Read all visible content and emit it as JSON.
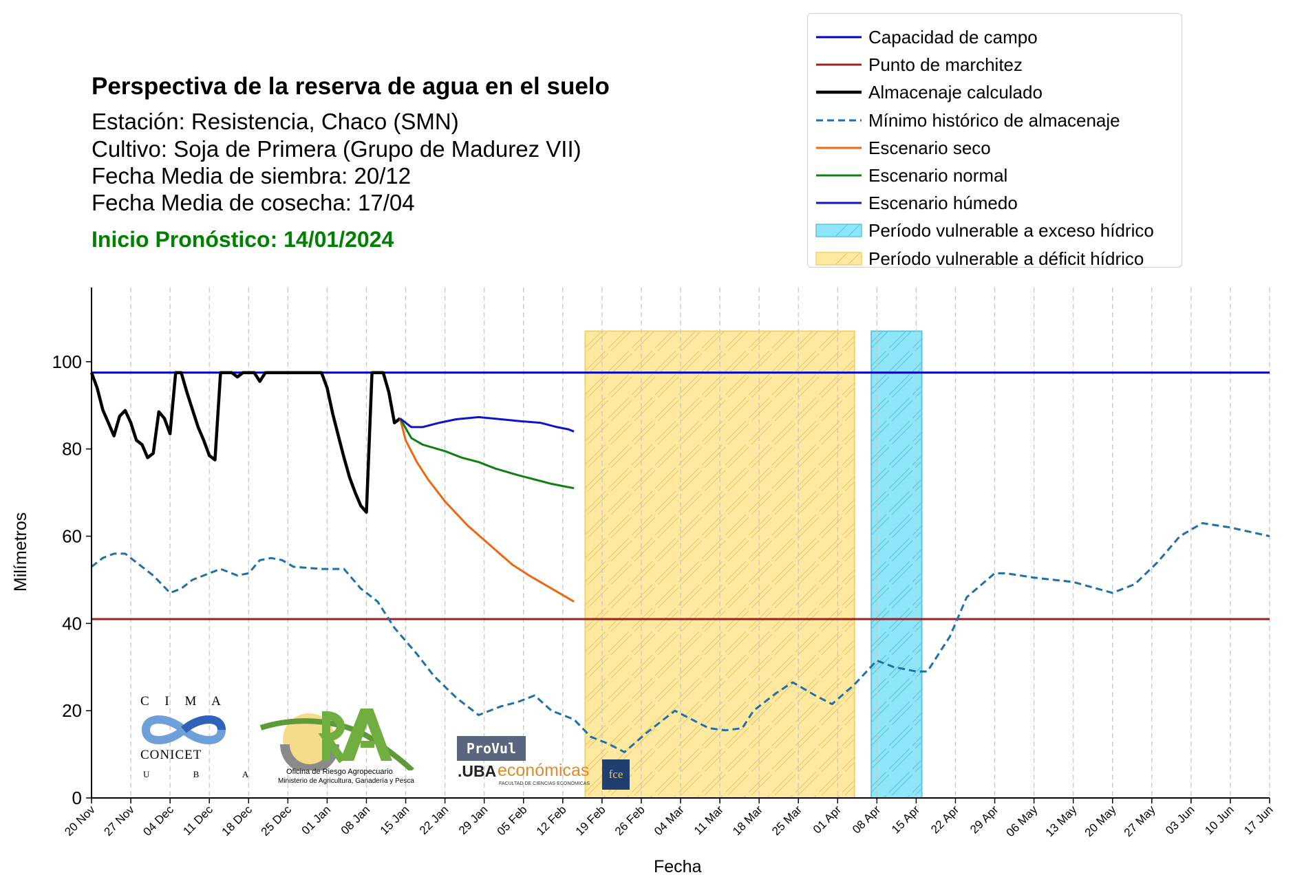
{
  "header": {
    "title": "Perspectiva de la reserva de agua en el suelo",
    "station": "Estación: Resistencia, Chaco (SMN)",
    "crop": "Cultivo: Soja de Primera (Grupo de Madurez VII)",
    "sowing": "Fecha Media de siembra: 20/12",
    "harvest": "Fecha Media de cosecha: 17/04",
    "forecast_start": "Inicio Pronóstico: 14/01/2024"
  },
  "logos": {
    "cima_letters": "C I M A",
    "conicet": "CONICET",
    "uba_letters": "U B A",
    "ora_caption1": "Oficina de Riesgo Agropecuario",
    "ora_caption2": "Ministerio de Agricultura, Ganadería y Pesca",
    "provul": "ProVul",
    "uba_prefix": ".UBA",
    "economicas": "económicas",
    "fce_caption": "FACULTAD DE CIENCIAS ECONÓMICAS",
    "fce": "fce"
  },
  "colors": {
    "capacidad": "#0000cc",
    "marchitez": "#992222",
    "almacenaje": "#000000",
    "minimo": "#1f6fa8",
    "seco": "#ee6611",
    "normal": "#108010",
    "humedo": "#1111cc",
    "exceso": "#8ee6f8",
    "deficit": "#ffe9a0"
  },
  "chart_data": {
    "type": "line",
    "xlabel": "Fecha",
    "ylabel": "Milímetros",
    "x_ticks": [
      "20 Nov",
      "27 Nov",
      "04 Dec",
      "11 Dec",
      "18 Dec",
      "25 Dec",
      "01 Jan",
      "08 Jan",
      "15 Jan",
      "22 Jan",
      "29 Jan",
      "05 Feb",
      "12 Feb",
      "19 Feb",
      "26 Feb",
      "04 Mar",
      "11 Mar",
      "18 Mar",
      "25 Mar",
      "01 Apr",
      "08 Apr",
      "15 Apr",
      "22 Apr",
      "29 Apr",
      "06 May",
      "13 May",
      "20 May",
      "27 May",
      "03 Jun",
      "10 Jun",
      "17 Jun"
    ],
    "x_range": [
      "2023-11-20",
      "2024-06-17"
    ],
    "y_ticks": [
      0,
      20,
      40,
      60,
      80,
      100
    ],
    "ylim": [
      0,
      117
    ],
    "grid": "vertical dashed at each weekly tick",
    "legend_placement": "upper right, above plot",
    "legend": [
      {
        "label": "Capacidad de campo",
        "kind": "line",
        "color": "#0000cc"
      },
      {
        "label": "Punto de marchitez",
        "kind": "line",
        "color": "#992222"
      },
      {
        "label": "Almacenaje calculado",
        "kind": "line",
        "color": "#000000"
      },
      {
        "label": "Mínimo histórico de almacenaje",
        "kind": "dashed",
        "color": "#1f6fa8"
      },
      {
        "label": "Escenario seco",
        "kind": "line",
        "color": "#ee6611"
      },
      {
        "label": "Escenario normal",
        "kind": "line",
        "color": "#108010"
      },
      {
        "label": "Escenario húmedo",
        "kind": "line",
        "color": "#1111cc"
      },
      {
        "label": "Período vulnerable a exceso hídrico",
        "kind": "patch",
        "color": "#8ee6f8"
      },
      {
        "label": "Período vulnerable a déficit hídrico",
        "kind": "patch",
        "color": "#ffe9a0"
      }
    ],
    "capacidad_de_campo": 97.5,
    "punto_de_marchitez": 41,
    "periods": {
      "deficit": {
        "start": "2024-02-16",
        "end": "2024-04-04",
        "top": 107
      },
      "exceso": {
        "start": "2024-04-07",
        "end": "2024-04-16",
        "top": 107
      }
    },
    "series": [
      {
        "name": "Almacenaje calculado",
        "key": "almacenaje",
        "style": "solid",
        "points": [
          [
            "2023-11-20",
            97.5
          ],
          [
            "2023-11-21",
            94
          ],
          [
            "2023-11-22",
            89
          ],
          [
            "2023-11-23",
            86
          ],
          [
            "2023-11-24",
            83
          ],
          [
            "2023-11-25",
            87.5
          ],
          [
            "2023-11-26",
            88.8
          ],
          [
            "2023-11-27",
            86
          ],
          [
            "2023-11-28",
            82
          ],
          [
            "2023-11-29",
            81
          ],
          [
            "2023-11-30",
            78
          ],
          [
            "2023-12-01",
            79
          ],
          [
            "2023-12-02",
            88.5
          ],
          [
            "2023-12-03",
            87
          ],
          [
            "2023-12-04",
            83.5
          ],
          [
            "2023-12-05",
            97.5
          ],
          [
            "2023-12-06",
            97.5
          ],
          [
            "2023-12-07",
            93
          ],
          [
            "2023-12-08",
            89
          ],
          [
            "2023-12-09",
            85
          ],
          [
            "2023-12-10",
            82
          ],
          [
            "2023-12-11",
            78.5
          ],
          [
            "2023-12-12",
            77.5
          ],
          [
            "2023-12-13",
            97.5
          ],
          [
            "2023-12-14",
            97.5
          ],
          [
            "2023-12-15",
            97.5
          ],
          [
            "2023-12-16",
            96.5
          ],
          [
            "2023-12-17",
            97.5
          ],
          [
            "2023-12-18",
            97.5
          ],
          [
            "2023-12-19",
            97.5
          ],
          [
            "2023-12-20",
            95.5
          ],
          [
            "2023-12-21",
            97.5
          ],
          [
            "2023-12-22",
            97.5
          ],
          [
            "2023-12-25",
            97.5
          ],
          [
            "2023-12-29",
            97.5
          ],
          [
            "2023-12-31",
            97.5
          ],
          [
            "2024-01-01",
            94
          ],
          [
            "2024-01-02",
            88
          ],
          [
            "2024-01-03",
            83
          ],
          [
            "2024-01-04",
            78
          ],
          [
            "2024-01-05",
            73.5
          ],
          [
            "2024-01-06",
            70
          ],
          [
            "2024-01-07",
            67
          ],
          [
            "2024-01-08",
            65.5
          ],
          [
            "2024-01-09",
            97.5
          ],
          [
            "2024-01-10",
            97.5
          ],
          [
            "2024-01-11",
            97.5
          ],
          [
            "2024-01-12",
            93
          ],
          [
            "2024-01-13",
            86
          ],
          [
            "2024-01-14",
            87
          ]
        ]
      },
      {
        "name": "Mínimo histórico de almacenaje",
        "key": "minimo",
        "style": "dashed",
        "points": [
          [
            "2023-11-20",
            53
          ],
          [
            "2023-11-22",
            55
          ],
          [
            "2023-11-24",
            56
          ],
          [
            "2023-11-26",
            56
          ],
          [
            "2023-11-29",
            53
          ],
          [
            "2023-12-01",
            51
          ],
          [
            "2023-12-04",
            47
          ],
          [
            "2023-12-06",
            48
          ],
          [
            "2023-12-08",
            50
          ],
          [
            "2023-12-11",
            51.5
          ],
          [
            "2023-12-13",
            52.5
          ],
          [
            "2023-12-16",
            51
          ],
          [
            "2023-12-18",
            51.5
          ],
          [
            "2023-12-20",
            54.5
          ],
          [
            "2023-12-22",
            55
          ],
          [
            "2023-12-24",
            54.5
          ],
          [
            "2023-12-26",
            53
          ],
          [
            "2023-12-31",
            52.5
          ],
          [
            "2024-01-04",
            52.5
          ],
          [
            "2024-01-07",
            48
          ],
          [
            "2024-01-10",
            45
          ],
          [
            "2024-01-13",
            39
          ],
          [
            "2024-01-17",
            33
          ],
          [
            "2024-01-20",
            28
          ],
          [
            "2024-01-24",
            23
          ],
          [
            "2024-01-28",
            19
          ],
          [
            "2024-02-01",
            21
          ],
          [
            "2024-02-04",
            22
          ],
          [
            "2024-02-07",
            23.5
          ],
          [
            "2024-02-10",
            20
          ],
          [
            "2024-02-14",
            18
          ],
          [
            "2024-02-17",
            14
          ],
          [
            "2024-02-20",
            12.5
          ],
          [
            "2024-02-23",
            10.5
          ],
          [
            "2024-02-27",
            15
          ],
          [
            "2024-03-03",
            20
          ],
          [
            "2024-03-06",
            18
          ],
          [
            "2024-03-09",
            16
          ],
          [
            "2024-03-12",
            15.5
          ],
          [
            "2024-03-15",
            16
          ],
          [
            "2024-03-17",
            20
          ],
          [
            "2024-03-21",
            24
          ],
          [
            "2024-03-24",
            26.5
          ],
          [
            "2024-03-28",
            23.5
          ],
          [
            "2024-03-31",
            21.5
          ],
          [
            "2024-04-04",
            26
          ],
          [
            "2024-04-08",
            31.5
          ],
          [
            "2024-04-11",
            30
          ],
          [
            "2024-04-15",
            29
          ],
          [
            "2024-04-17",
            29
          ],
          [
            "2024-04-21",
            37
          ],
          [
            "2024-04-24",
            46
          ],
          [
            "2024-04-29",
            51.5
          ],
          [
            "2024-05-01",
            51.5
          ],
          [
            "2024-05-06",
            50.5
          ],
          [
            "2024-05-13",
            49.5
          ],
          [
            "2024-05-20",
            47
          ],
          [
            "2024-05-24",
            49
          ],
          [
            "2024-05-28",
            54
          ],
          [
            "2024-06-01",
            60
          ],
          [
            "2024-06-05",
            63
          ],
          [
            "2024-06-10",
            62
          ],
          [
            "2024-06-17",
            60
          ]
        ]
      },
      {
        "name": "Escenario seco",
        "key": "seco",
        "style": "solid",
        "points": [
          [
            "2024-01-14",
            87
          ],
          [
            "2024-01-15",
            82
          ],
          [
            "2024-01-17",
            77
          ],
          [
            "2024-01-19",
            73
          ],
          [
            "2024-01-22",
            68
          ],
          [
            "2024-01-26",
            62.5
          ],
          [
            "2024-01-30",
            58
          ],
          [
            "2024-02-03",
            53.5
          ],
          [
            "2024-02-06",
            51
          ],
          [
            "2024-02-10",
            48
          ],
          [
            "2024-02-14",
            45
          ]
        ]
      },
      {
        "name": "Escenario normal",
        "key": "normal",
        "style": "solid",
        "points": [
          [
            "2024-01-14",
            87
          ],
          [
            "2024-01-16",
            82.5
          ],
          [
            "2024-01-18",
            81
          ],
          [
            "2024-01-22",
            79.5
          ],
          [
            "2024-01-25",
            78
          ],
          [
            "2024-01-28",
            77
          ],
          [
            "2024-01-31",
            75.5
          ],
          [
            "2024-02-04",
            74
          ],
          [
            "2024-02-07",
            73
          ],
          [
            "2024-02-10",
            72
          ],
          [
            "2024-02-12",
            71.5
          ],
          [
            "2024-02-14",
            71
          ]
        ]
      },
      {
        "name": "Escenario húmedo",
        "key": "humedo",
        "style": "solid",
        "points": [
          [
            "2024-01-14",
            87
          ],
          [
            "2024-01-16",
            85
          ],
          [
            "2024-01-18",
            85
          ],
          [
            "2024-01-21",
            86
          ],
          [
            "2024-01-24",
            86.8
          ],
          [
            "2024-01-28",
            87.3
          ],
          [
            "2024-02-01",
            86.8
          ],
          [
            "2024-02-05",
            86.3
          ],
          [
            "2024-02-08",
            86
          ],
          [
            "2024-02-11",
            85
          ],
          [
            "2024-02-13",
            84.5
          ],
          [
            "2024-02-14",
            84
          ]
        ]
      }
    ]
  }
}
